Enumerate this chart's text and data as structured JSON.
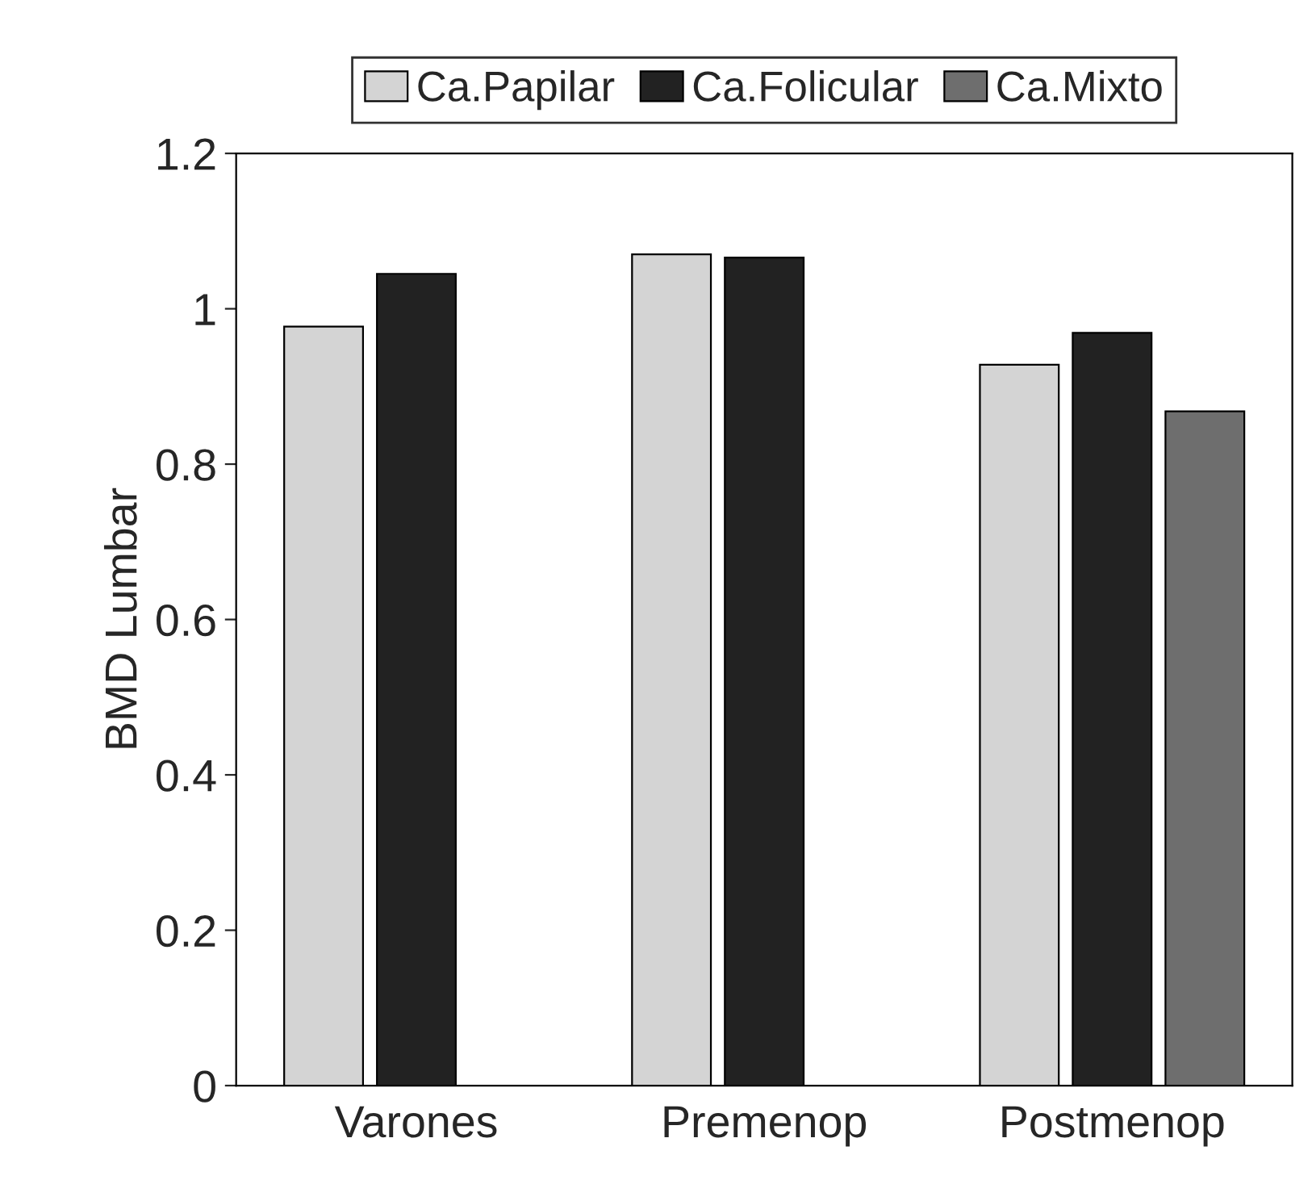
{
  "chart_data": {
    "type": "bar",
    "ylabel": "BMD Lumbar",
    "categories": [
      "Varones",
      "Premenop",
      "Postmenop"
    ],
    "series": [
      {
        "name": "Ca.Papilar",
        "color": "#d4d4d4",
        "values": [
          0.977,
          1.07,
          0.928
        ]
      },
      {
        "name": "Ca.Folicular",
        "color": "#222222",
        "values": [
          1.045,
          1.066,
          0.969
        ]
      },
      {
        "name": "Ca.Mixto",
        "color": "#6e6e6e",
        "values": [
          null,
          null,
          0.868
        ]
      }
    ],
    "ylim": [
      0,
      1.2
    ],
    "yticks": [
      0,
      0.2,
      0.4,
      0.6,
      0.8,
      1,
      1.2
    ],
    "grid": false,
    "legend": "top"
  }
}
